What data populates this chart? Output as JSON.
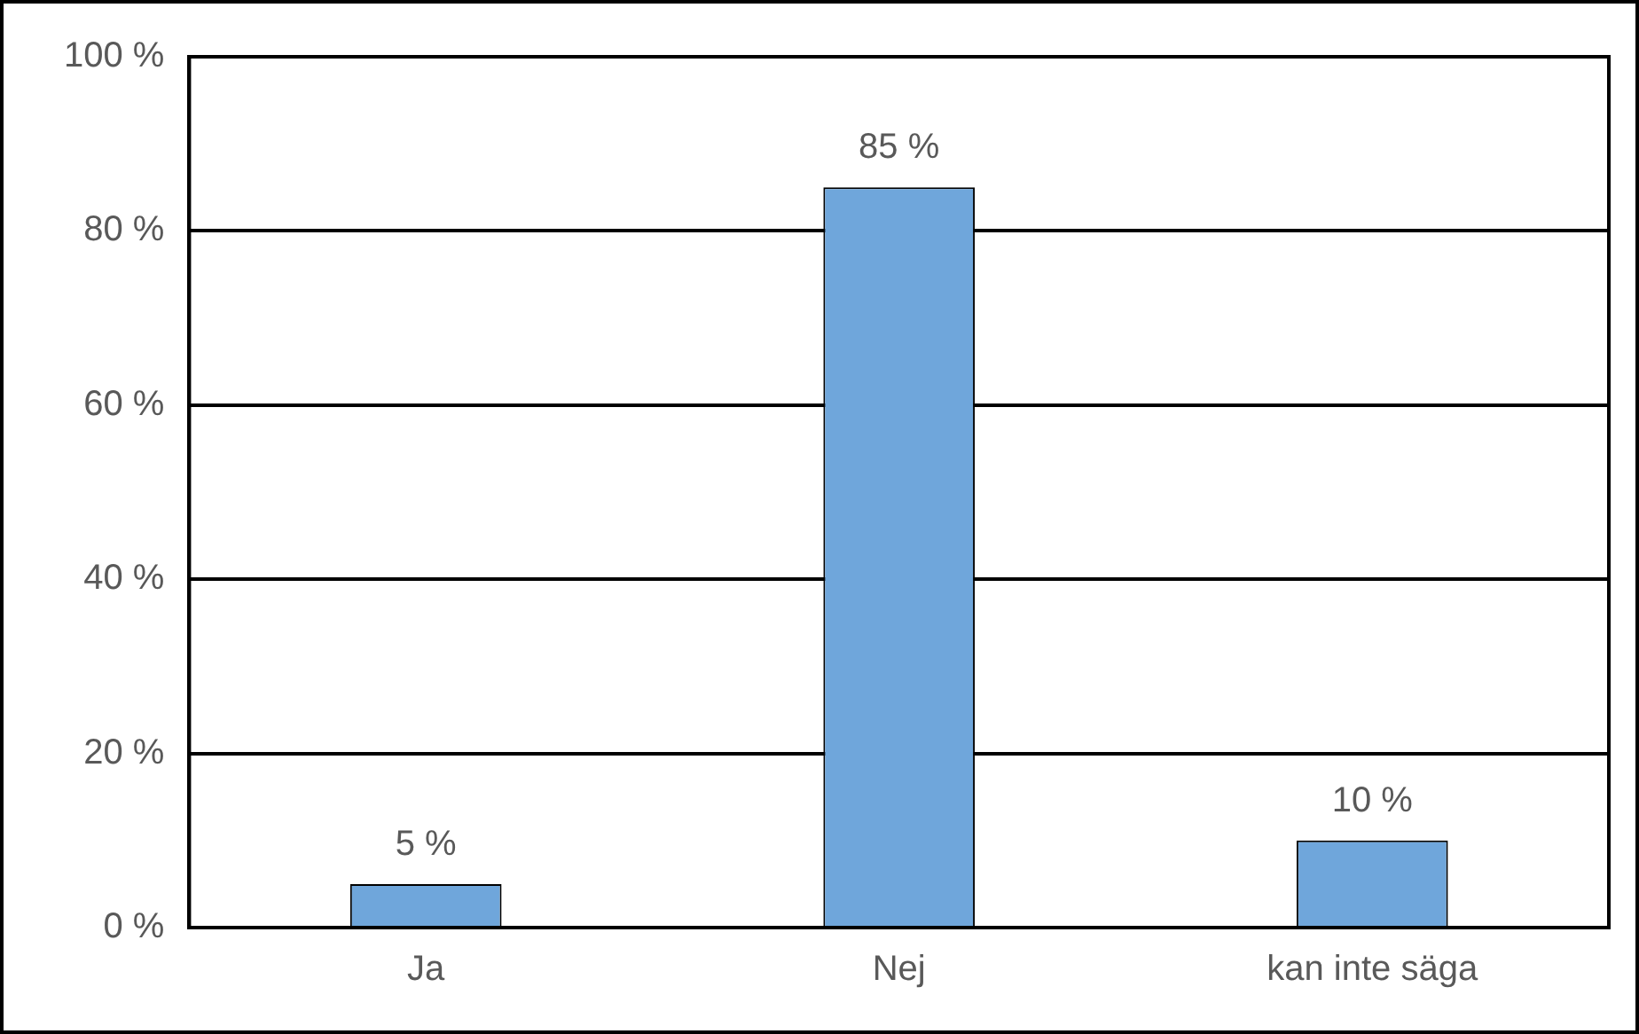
{
  "chart_data": {
    "type": "bar",
    "categories": [
      "Ja",
      "Nej",
      "kan inte säga"
    ],
    "values": [
      5,
      85,
      10
    ],
    "color": "#6fa6db",
    "ylim": [
      0,
      100
    ],
    "yticks": [
      {
        "value": 0,
        "label": "0 %"
      },
      {
        "value": 20,
        "label": "20 %"
      },
      {
        "value": 40,
        "label": "40 %"
      },
      {
        "value": 60,
        "label": "60 %"
      },
      {
        "value": 80,
        "label": "80 %"
      },
      {
        "value": 100,
        "label": "100 %"
      }
    ],
    "grid": "y",
    "value_labels": [
      "5 %",
      "85 %",
      "10 %"
    ]
  }
}
